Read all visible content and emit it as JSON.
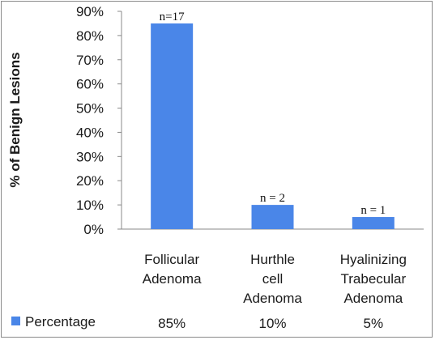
{
  "chart_data": {
    "type": "bar",
    "categories": [
      [
        "Follicular",
        "Adenoma"
      ],
      [
        "Hurthle",
        "cell",
        "Adenoma"
      ],
      [
        "Hyalinizing",
        "Trabecular",
        "Adenoma"
      ]
    ],
    "series": [
      {
        "name": "Percentage",
        "values": [
          85,
          10,
          5
        ],
        "annotations": [
          "n=17",
          "n = 2",
          "n = 1"
        ],
        "table_labels": [
          "85%",
          "10%",
          "5%"
        ],
        "color": "#4a86e8"
      }
    ],
    "ylabel": "% of Benign Lesions",
    "ylim": [
      0,
      90
    ],
    "yticks": [
      0,
      10,
      20,
      30,
      40,
      50,
      60,
      70,
      80,
      90
    ],
    "ytick_labels": [
      "0%",
      "10%",
      "20%",
      "30%",
      "40%",
      "50%",
      "60%",
      "70%",
      "80%",
      "90%"
    ],
    "grid": false,
    "legend": "data-table-bottom"
  }
}
